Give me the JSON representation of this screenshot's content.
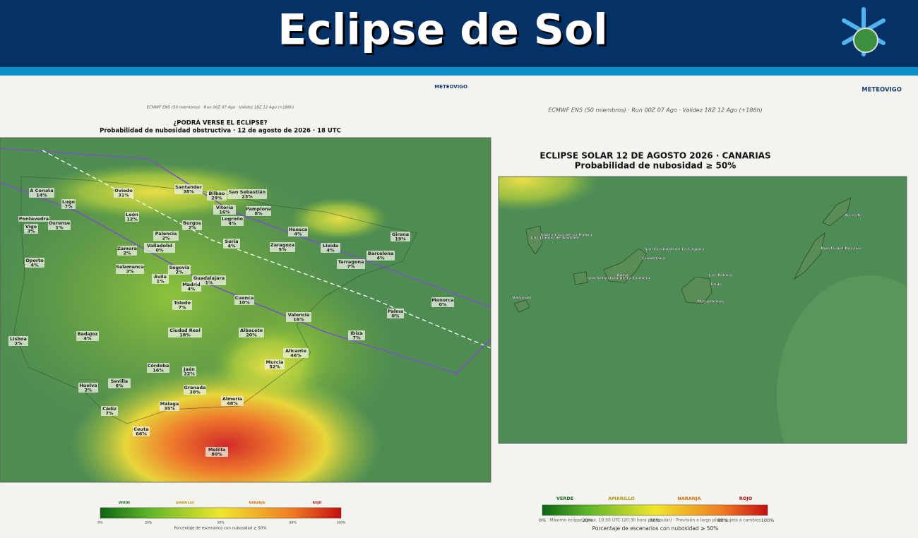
{
  "header": {
    "title": "Eclipse de Sol"
  },
  "left_panel": {
    "brand": "METEOVIGO",
    "source": "ECMWF ENS (50 miembros) · Run 00Z 07 Ago · Validez 18Z 12 Ago (+186h)",
    "title": "¿PODRÁ VERSE EL ECLIPSE?",
    "subtitle": "Probabilidad de nubosidad obstructiva · 12 de agosto de 2026 · 18 UTC",
    "cities": [
      {
        "name": "A Coruña",
        "value": "14%"
      },
      {
        "name": "Oviedo",
        "value": "31%"
      },
      {
        "name": "Santander",
        "value": "38%"
      },
      {
        "name": "Bilbao",
        "value": "29%"
      },
      {
        "name": "San Sebastián",
        "value": "23%"
      },
      {
        "name": "Lugo",
        "value": "7%"
      },
      {
        "name": "Vitoria",
        "value": "16%"
      },
      {
        "name": "Pamplona",
        "value": "8%"
      },
      {
        "name": "León",
        "value": "12%"
      },
      {
        "name": "Pontevedra"
      },
      {
        "name": "Vigo",
        "value": "3%"
      },
      {
        "name": "Ourense",
        "value": "1%"
      },
      {
        "name": "Burgos",
        "value": "2%"
      },
      {
        "name": "Logroño",
        "value": "4%"
      },
      {
        "name": "Huesca",
        "value": "4%"
      },
      {
        "name": "Palencia",
        "value": "2%"
      },
      {
        "name": "Girona",
        "value": "19%"
      },
      {
        "name": "Soria",
        "value": "4%"
      },
      {
        "name": "Valladolid",
        "value": "0%"
      },
      {
        "name": "Zamora",
        "value": "2%"
      },
      {
        "name": "Zaragoza",
        "value": "5%"
      },
      {
        "name": "Lleida",
        "value": "4%"
      },
      {
        "name": "Barcelona",
        "value": "4%"
      },
      {
        "name": "Oporto",
        "value": "4%"
      },
      {
        "name": "Tarragona",
        "value": "7%"
      },
      {
        "name": "Salamanca",
        "value": "3%"
      },
      {
        "name": "Segovia",
        "value": "2%"
      },
      {
        "name": "Ávila",
        "value": "1%"
      },
      {
        "name": "Guadalajara",
        "value": "1%"
      },
      {
        "name": "Madrid",
        "value": "4%"
      },
      {
        "name": "Cuenca",
        "value": "10%"
      },
      {
        "name": "Toledo",
        "value": "7%"
      },
      {
        "name": "Menorca",
        "value": "0%"
      },
      {
        "name": "Palma",
        "value": "0%"
      },
      {
        "name": "Valencia",
        "value": "16%"
      },
      {
        "name": "Ciudad Real",
        "value": "18%"
      },
      {
        "name": "Albacete",
        "value": "20%"
      },
      {
        "name": "Badajoz",
        "value": "4%"
      },
      {
        "name": "Ibiza",
        "value": "7%"
      },
      {
        "name": "Lisboa",
        "value": "2%"
      },
      {
        "name": "Alicante",
        "value": "46%"
      },
      {
        "name": "Murcia",
        "value": "52%"
      },
      {
        "name": "Córdoba",
        "value": "16%"
      },
      {
        "name": "Jaén",
        "value": "22%"
      },
      {
        "name": "Huelva",
        "value": "2%"
      },
      {
        "name": "Sevilla",
        "value": "6%"
      },
      {
        "name": "Granada",
        "value": "30%"
      },
      {
        "name": "Almería",
        "value": "48%"
      },
      {
        "name": "Málaga",
        "value": "35%"
      },
      {
        "name": "Cádiz",
        "value": "7%"
      },
      {
        "name": "Ceuta",
        "value": "66%"
      },
      {
        "name": "Melilla",
        "value": "80%"
      }
    ],
    "legend": {
      "categories": [
        "VERDE",
        "AMARILLO",
        "NARANJA",
        "ROJO"
      ],
      "ticks": [
        "0%",
        "20%",
        "50%",
        "80%",
        "100%"
      ],
      "caption": "Porcentaje de escenarios con nubosidad ≥ 50%"
    }
  },
  "right_panel": {
    "brand": "METEOVIGO",
    "source": "ECMWF ENS (50 miembros) · Run 00Z 07 Ago · Validez 18Z 12 Ago (+186h)",
    "title": "ECLIPSE SOLAR 12 DE AGOSTO 2026 · CANARIAS",
    "subtitle": "Probabilidad de nubosidad ≥ 50%",
    "places": [
      "Santa Cruz de La Palma",
      "Los Llanos de Aridane",
      "San Cristóbal de La Laguna",
      "Candelaria",
      "Adeje",
      "San Sebastián de La Gomera",
      "Las Palmas",
      "Telde",
      "Maspalomas",
      "Valverde",
      "Arrecife",
      "Puerto del Rosario"
    ],
    "legend": {
      "categories": [
        "VERDE",
        "AMARILLO",
        "NARANJA",
        "ROJO"
      ],
      "ticks": [
        "0%",
        "20%",
        "50%",
        "80%",
        "100%"
      ],
      "note": "Máximo eclipse aprox. 19:30 UTC (20:30 hora peninsular) · Previsión a largo plazo sujeta a cambios",
      "caption": "Porcentaje de escenarios con nubosidad ≥ 50%"
    }
  }
}
